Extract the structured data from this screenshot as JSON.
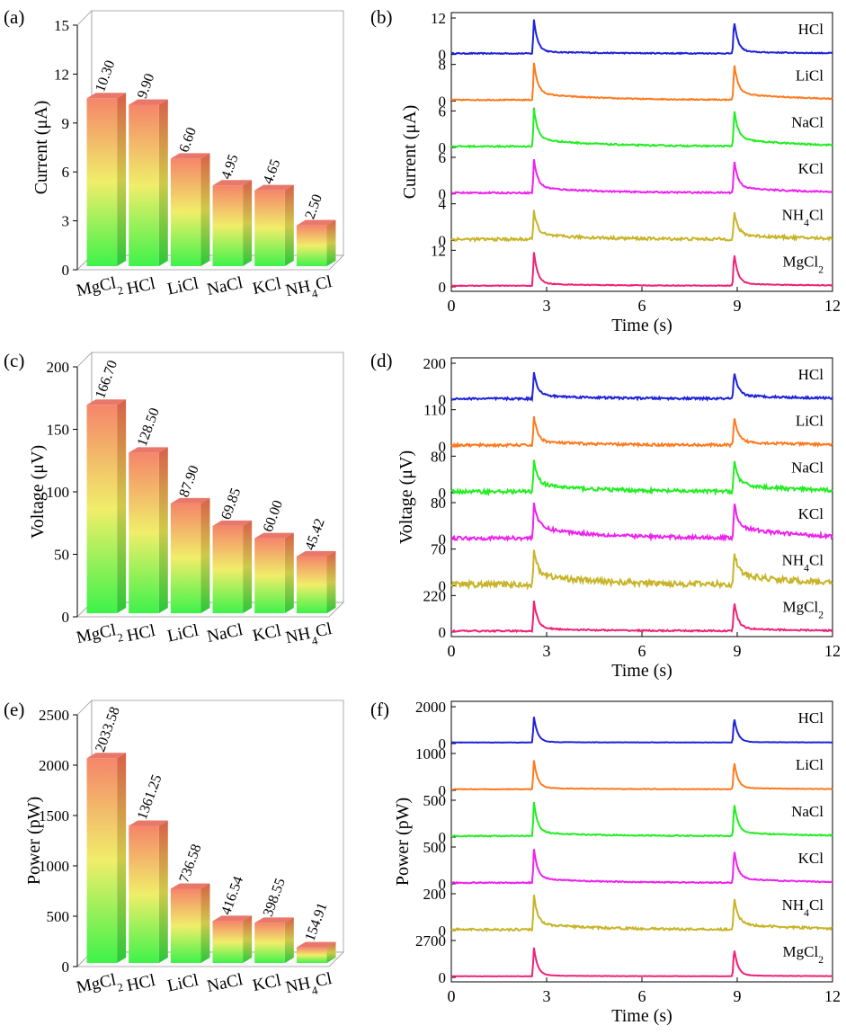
{
  "chart_data": [
    {
      "panel": "(a)",
      "type": "bar",
      "ylabel": "Current (μA)",
      "ylim": [
        0,
        15
      ],
      "yticks": [
        "0",
        "3",
        "6",
        "9",
        "12",
        "15"
      ],
      "categories": [
        "MgCl2",
        "HCl",
        "LiCl",
        "NaCl",
        "KCl",
        "NH4Cl"
      ],
      "values": [
        10.3,
        9.9,
        6.6,
        4.95,
        4.65,
        2.5
      ],
      "labels": [
        "10.30",
        "9.90",
        "6.60",
        "4.95",
        "4.65",
        "2.50"
      ],
      "gradient": [
        "#f5856a",
        "#f0ee6a",
        "#3ef24a"
      ]
    },
    {
      "panel": "(b)",
      "type": "line",
      "ylabel": "Current (μA)",
      "xlabel": "Time (s)",
      "xlim": [
        0,
        12
      ],
      "xticks": [
        "0",
        "3",
        "6",
        "9",
        "12"
      ],
      "peaks_at": [
        2.6,
        8.9
      ],
      "series": [
        {
          "name": "HCl",
          "color": "#1f22d8",
          "ticks": [
            "12",
            "0"
          ],
          "peak": 10.5,
          "range": 12,
          "tail": 0.06,
          "noise": 0.015
        },
        {
          "name": "LiCl",
          "color": "#ff7a1e",
          "ticks": [
            "8",
            "0"
          ],
          "peak": 6.7,
          "range": 8,
          "tail": 0.22,
          "noise": 0.015
        },
        {
          "name": "NaCl",
          "color": "#22ee22",
          "ticks": [
            "6",
            "0"
          ],
          "peak": 5.0,
          "range": 6,
          "tail": 0.25,
          "noise": 0.02
        },
        {
          "name": "KCl",
          "color": "#ee22ee",
          "ticks": [
            "6",
            "0"
          ],
          "peak": 4.6,
          "range": 6,
          "tail": 0.2,
          "noise": 0.02
        },
        {
          "name": "NH4Cl",
          "color": "#c8b428",
          "ticks": [
            "4",
            "0"
          ],
          "peak": 2.6,
          "range": 4,
          "tail": 0.2,
          "noise": 0.04
        },
        {
          "name": "MgCl2",
          "color": "#ee2277",
          "ticks": [
            "12",
            "0"
          ],
          "peak": 10.3,
          "range": 12,
          "tail": 0.07,
          "noise": 0.01
        }
      ]
    },
    {
      "panel": "(c)",
      "type": "bar",
      "ylabel": "Voltage (μV)",
      "ylim": [
        0,
        200
      ],
      "yticks": [
        "0",
        "50",
        "100",
        "150",
        "200"
      ],
      "categories": [
        "MgCl2",
        "HCl",
        "LiCl",
        "NaCl",
        "KCl",
        "NH4Cl"
      ],
      "values": [
        166.7,
        128.5,
        87.9,
        69.85,
        60.0,
        45.42
      ],
      "labels": [
        "166.70",
        "128.50",
        "87.90",
        "69.85",
        "60.00",
        "45.42"
      ],
      "gradient": [
        "#f5856a",
        "#f0ee6a",
        "#3ef24a"
      ]
    },
    {
      "panel": "(d)",
      "type": "line",
      "ylabel": "Voltage (μV)",
      "xlabel": "Time (s)",
      "xlim": [
        0,
        12
      ],
      "xticks": [
        "0",
        "3",
        "6",
        "9",
        "12"
      ],
      "peaks_at": [
        2.6,
        8.9
      ],
      "series": [
        {
          "name": "HCl",
          "color": "#1f22d8",
          "ticks": [
            "200",
            "0"
          ],
          "peak": 130,
          "range": 200,
          "tail": 0.15,
          "noise": 0.03
        },
        {
          "name": "LiCl",
          "color": "#ff7a1e",
          "ticks": [
            "110",
            "0"
          ],
          "peak": 75,
          "range": 110,
          "tail": 0.15,
          "noise": 0.035
        },
        {
          "name": "NaCl",
          "color": "#22ee22",
          "ticks": [
            "80",
            "0"
          ],
          "peak": 55,
          "range": 80,
          "tail": 0.3,
          "noise": 0.05
        },
        {
          "name": "KCl",
          "color": "#ee22ee",
          "ticks": [
            "80",
            "0"
          ],
          "peak": 55,
          "range": 80,
          "tail": 0.45,
          "noise": 0.05
        },
        {
          "name": "NH4Cl",
          "color": "#c8b428",
          "ticks": [
            "70",
            "0"
          ],
          "peak": 45,
          "range": 70,
          "tail": 0.45,
          "noise": 0.08
        },
        {
          "name": "MgCl2",
          "color": "#ee2277",
          "ticks": [
            "220",
            "0"
          ],
          "peak": 166,
          "range": 220,
          "tail": 0.1,
          "noise": 0.02
        }
      ]
    },
    {
      "panel": "(e)",
      "type": "bar",
      "ylabel": "Power (pW)",
      "ylim": [
        0,
        2500
      ],
      "yticks": [
        "0",
        "500",
        "1000",
        "1500",
        "2000",
        "2500"
      ],
      "categories": [
        "MgCl2",
        "HCl",
        "LiCl",
        "NaCl",
        "KCl",
        "NH4Cl"
      ],
      "values": [
        2033.58,
        1361.25,
        736.58,
        416.54,
        398.55,
        154.91
      ],
      "labels": [
        "2033.58",
        "1361.25",
        "736.58",
        "416.54",
        "398.55",
        "154.91"
      ],
      "gradient": [
        "#f5856a",
        "#f0ee6a",
        "#3ef24a"
      ]
    },
    {
      "panel": "(f)",
      "type": "line",
      "ylabel": "Power (pW)",
      "xlabel": "Time (s)",
      "xlim": [
        0,
        12
      ],
      "xticks": [
        "0",
        "3",
        "6",
        "9",
        "12"
      ],
      "peaks_at": [
        2.6,
        8.9
      ],
      "series": [
        {
          "name": "HCl",
          "color": "#1f22d8",
          "ticks": [
            "2000",
            "0"
          ],
          "peak": 1360,
          "range": 2000,
          "tail": 0.02,
          "noise": 0.005
        },
        {
          "name": "LiCl",
          "color": "#ff7a1e",
          "ticks": [
            "1000",
            "0"
          ],
          "peak": 740,
          "range": 1000,
          "tail": 0.05,
          "noise": 0.008
        },
        {
          "name": "NaCl",
          "color": "#22ee22",
          "ticks": [
            "500",
            "0"
          ],
          "peak": 410,
          "range": 500,
          "tail": 0.12,
          "noise": 0.015
        },
        {
          "name": "KCl",
          "color": "#ee22ee",
          "ticks": [
            "500",
            "0"
          ],
          "peak": 400,
          "range": 500,
          "tail": 0.15,
          "noise": 0.015
        },
        {
          "name": "NH4Cl",
          "color": "#c8b428",
          "ticks": [
            "200",
            "0"
          ],
          "peak": 155,
          "range": 200,
          "tail": 0.2,
          "noise": 0.03
        },
        {
          "name": "MgCl2",
          "color": "#ee2277",
          "ticks": [
            "2700",
            "0"
          ],
          "peak": 2030,
          "range": 2700,
          "tail": 0.03,
          "noise": 0.005
        }
      ]
    }
  ]
}
